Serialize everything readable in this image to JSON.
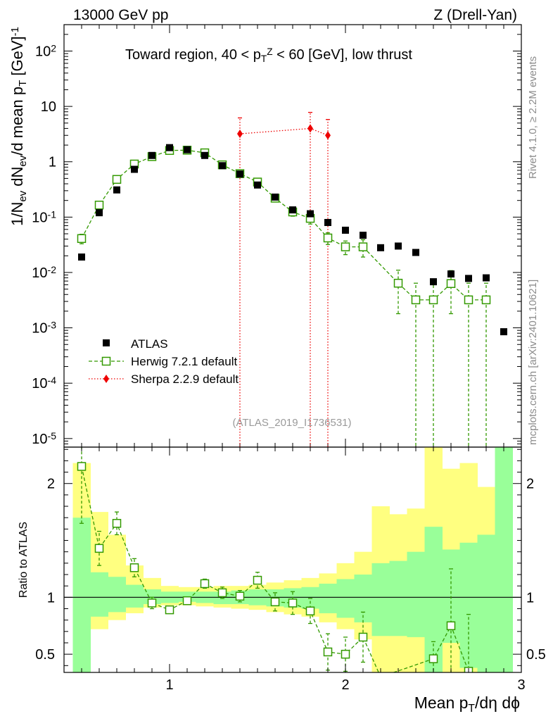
{
  "header": {
    "left": "13000 GeV pp",
    "right": "Z (Drell-Yan)"
  },
  "side_labels": {
    "rivet": "Rivet 4.1.0, ≥ 2.2M events",
    "mcplots": "mcplots.cern.ch [arXiv:2401.10621]"
  },
  "chart_data": [
    {
      "type": "scatter",
      "panel": "main",
      "title": "Toward region, 40 < pTZ < 60 [GeV], low thrust",
      "title_parts": [
        "Toward region, 40 < p",
        "T",
        "Z",
        " < 60 [GeV], low thrust"
      ],
      "ylabel": "1/Nev dNev/d mean pT [GeV]-1",
      "ylabel_parts": [
        "1/N",
        "ev",
        " dN",
        "ev",
        "/d mean p",
        "T",
        " [GeV]",
        "-1"
      ],
      "xlabel": "Mean pT/dη dϕ",
      "xlabel_parts": [
        "Mean p",
        "T",
        "/dη dϕ"
      ],
      "xlim": [
        0.4,
        3.0
      ],
      "ylim": [
        7e-06,
        300
      ],
      "yscale": "log",
      "x_ticks": [
        "1",
        "2",
        "3"
      ],
      "y_ticks": [
        {
          "base": "10",
          "exp": "-5",
          "value": 1e-05
        },
        {
          "base": "10",
          "exp": "-4",
          "value": 0.0001
        },
        {
          "base": "10",
          "exp": "-3",
          "value": 0.001
        },
        {
          "base": "10",
          "exp": "-2",
          "value": 0.01
        },
        {
          "base": "10",
          "exp": "-1",
          "value": 0.1
        },
        {
          "base": "1",
          "exp": "",
          "value": 1
        },
        {
          "base": "10",
          "exp": "",
          "value": 10
        },
        {
          "base": "10",
          "exp": "2",
          "value": 100
        }
      ],
      "watermark": "(ATLAS_2019_I1736531)",
      "legend_position": "lower-left",
      "series": [
        {
          "name": "ATLAS",
          "color": "#000000",
          "marker": "filled-square",
          "x": [
            0.5,
            0.6,
            0.7,
            0.8,
            0.9,
            1.0,
            1.1,
            1.2,
            1.3,
            1.4,
            1.5,
            1.6,
            1.7,
            1.8,
            1.9,
            2.0,
            2.1,
            2.2,
            2.3,
            2.4,
            2.5,
            2.6,
            2.7,
            2.8,
            2.9
          ],
          "y": [
            0.019,
            0.12,
            0.31,
            0.73,
            1.3,
            1.8,
            1.65,
            1.3,
            0.85,
            0.6,
            0.38,
            0.23,
            0.135,
            0.115,
            0.08,
            0.058,
            0.047,
            0.028,
            0.03,
            0.023,
            0.0068,
            0.0094,
            0.0078,
            0.008,
            0.00085
          ]
        },
        {
          "name": "Herwig 7.2.1 default",
          "color": "#339900",
          "marker": "open-square",
          "line": "dashed",
          "x": [
            0.5,
            0.6,
            0.7,
            0.8,
            0.9,
            1.0,
            1.1,
            1.2,
            1.3,
            1.4,
            1.5,
            1.6,
            1.7,
            1.8,
            1.9,
            2.0,
            2.1,
            2.3,
            2.4,
            2.5,
            2.6,
            2.7,
            2.8
          ],
          "y": [
            0.041,
            0.165,
            0.48,
            0.91,
            1.24,
            1.6,
            1.62,
            1.45,
            0.88,
            0.61,
            0.43,
            0.22,
            0.124,
            0.095,
            0.042,
            0.029,
            0.029,
            0.0064,
            0.0032,
            0.0032,
            0.0063,
            0.0032,
            0.0032
          ],
          "err_low": [
            0.008,
            0.025,
            0.06,
            0.1,
            0.12,
            0.12,
            0.12,
            0.1,
            0.08,
            0.06,
            0.05,
            0.03,
            0.02,
            0.02,
            0.01,
            0.008,
            0.01,
            0.0046,
            0.0032,
            0.0032,
            0.0045,
            0.0032,
            0.0032
          ],
          "err_high": [
            0.008,
            0.025,
            0.06,
            0.1,
            0.12,
            0.12,
            0.12,
            0.1,
            0.08,
            0.06,
            0.05,
            0.03,
            0.02,
            0.02,
            0.01,
            0.008,
            0.01,
            0.0046,
            0.0032,
            0.0032,
            0.0045,
            0.0032,
            0.0032
          ]
        },
        {
          "name": "Sherpa 2.2.9 default",
          "color": "#ee0000",
          "marker": "filled-diamond",
          "line": "dotted",
          "x": [
            1.4,
            1.8,
            1.9
          ],
          "y": [
            3.2,
            4.0,
            3.0
          ],
          "err_low": [
            3.2,
            4.0,
            3.0
          ],
          "err_high": [
            3.0,
            3.8,
            2.8
          ]
        }
      ]
    },
    {
      "type": "line",
      "panel": "ratio",
      "ylabel": "Ratio to ATLAS",
      "xlim": [
        0.4,
        3.0
      ],
      "ylim": [
        0.34,
        2.32
      ],
      "y_ticks": [
        "0.5",
        "1",
        "2"
      ],
      "bands": {
        "x_edges": [
          0.45,
          0.55,
          0.65,
          0.75,
          0.85,
          0.95,
          1.05,
          1.15,
          1.25,
          1.35,
          1.45,
          1.55,
          1.65,
          1.75,
          1.85,
          1.95,
          2.05,
          2.15,
          2.25,
          2.35,
          2.45,
          2.55,
          2.65,
          2.75,
          2.85,
          2.95
        ],
        "yellow_low": [
          0.34,
          0.72,
          0.8,
          0.86,
          0.91,
          0.93,
          0.93,
          0.92,
          0.91,
          0.9,
          0.89,
          0.87,
          0.85,
          0.83,
          0.78,
          0.72,
          0.63,
          0.34,
          0.34,
          0.34,
          0.34,
          0.34,
          0.34,
          0.34,
          0.34
        ],
        "yellow_high": [
          2.18,
          1.75,
          1.55,
          1.28,
          1.17,
          1.1,
          1.09,
          1.09,
          1.1,
          1.1,
          1.11,
          1.13,
          1.15,
          1.17,
          1.21,
          1.3,
          1.4,
          1.8,
          1.73,
          1.78,
          2.32,
          2.13,
          2.18,
          1.97,
          2.32
        ],
        "green_low": [
          0.34,
          0.83,
          0.87,
          0.91,
          0.94,
          0.95,
          0.96,
          0.95,
          0.94,
          0.94,
          0.93,
          0.92,
          0.91,
          0.9,
          0.86,
          0.82,
          0.78,
          0.66,
          0.66,
          0.65,
          0.34,
          0.6,
          0.38,
          0.34,
          0.34
        ],
        "green_high": [
          1.7,
          1.22,
          1.18,
          1.11,
          1.07,
          1.05,
          1.05,
          1.05,
          1.05,
          1.06,
          1.07,
          1.07,
          1.08,
          1.09,
          1.12,
          1.16,
          1.2,
          1.3,
          1.32,
          1.4,
          1.62,
          1.42,
          1.48,
          1.55,
          2.32
        ]
      },
      "series": [
        {
          "name": "Herwig 7.2.1 default",
          "color": "#339900",
          "x": [
            0.5,
            0.6,
            0.7,
            0.8,
            0.9,
            1.0,
            1.1,
            1.2,
            1.3,
            1.4,
            1.5,
            1.6,
            1.7,
            1.8,
            1.9,
            2.0,
            2.1,
            2.2,
            2.5,
            2.6,
            2.7
          ],
          "y": [
            2.15,
            1.43,
            1.65,
            1.26,
            0.95,
            0.89,
            0.97,
            1.12,
            1.04,
            1.01,
            1.15,
            0.96,
            0.95,
            0.88,
            0.52,
            0.5,
            0.65,
            0.3,
            0.46,
            0.75,
            0.35
          ],
          "err": [
            0.5,
            0.15,
            0.1,
            0.08,
            0.05,
            0.03,
            0.03,
            0.04,
            0.05,
            0.05,
            0.07,
            0.08,
            0.1,
            0.11,
            0.16,
            0.15,
            0.22,
            0.0,
            0.15,
            0.5,
            0.5
          ]
        }
      ]
    }
  ]
}
